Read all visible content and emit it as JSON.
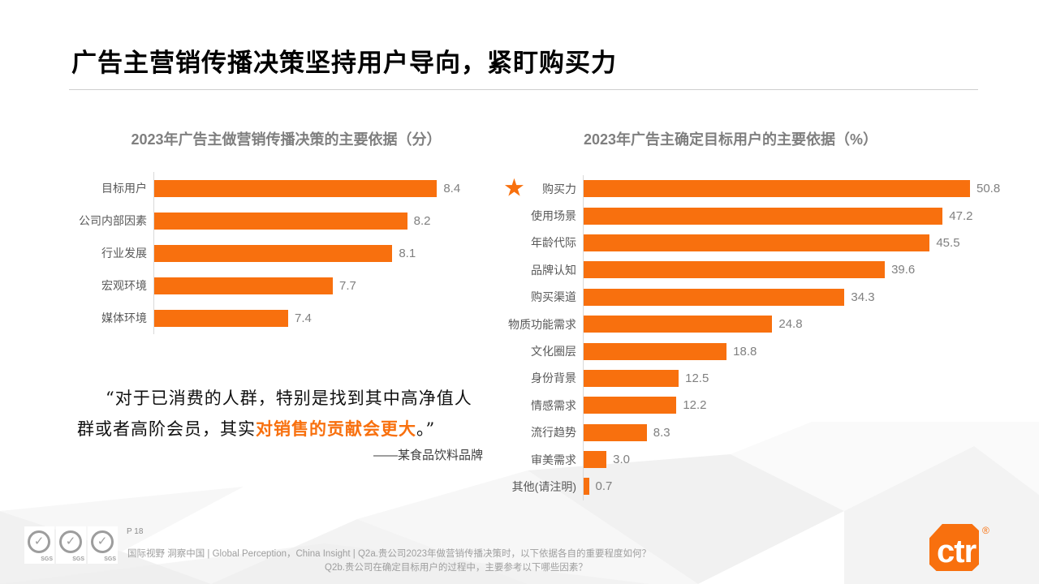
{
  "slide": {
    "title": "广告主营销传播决策坚持用户导向，紧盯购买力",
    "page_label": "P 18",
    "footer_line1": "国际视野 洞察中国 |  Global Perception，China Insight | Q2a.贵公司2023年做营销传播决策时，以下依据各自的重要程度如何？",
    "footer_line2": "Q2b.贵公司在确定目标用户的过程中，主要参考以下哪些因素？",
    "sgs_label": "SGS",
    "logo_text": "ctr",
    "logo_reg": "®"
  },
  "quote": {
    "line1": "“对于已消费的人群，特别是找到其中高净值人",
    "line2_pre": "群或者高阶会员，其实",
    "line2_highlight": "对销售的贡献会更大",
    "line2_post": "。”",
    "attribution": "——某食品饮料品牌"
  },
  "colors": {
    "accent_orange": "#F8700E",
    "title_black": "#000000",
    "chart_title_gray": "#7F7F7F",
    "label_gray": "#595959",
    "value_gray": "#808080",
    "axis_gray": "#D9D9D9",
    "footer_gray": "#9E9E9E"
  },
  "chart_data": [
    {
      "type": "bar",
      "orientation": "horizontal",
      "title": "2023年广告主做营销传播决策的主要依据（分）",
      "categories": [
        "目标用户",
        "公司内部因素",
        "行业发展",
        "宏观环境",
        "媒体环境"
      ],
      "values": [
        8.4,
        8.2,
        8.1,
        7.7,
        7.4
      ],
      "xlim": [
        6.5,
        8.6
      ],
      "value_decimals": 1,
      "bar_color": "#F8700E",
      "grid": false,
      "legend": false
    },
    {
      "type": "bar",
      "orientation": "horizontal",
      "title": "2023年广告主确定目标用户的主要依据（%）",
      "categories": [
        "购买力",
        "使用场景",
        "年龄代际",
        "品牌认知",
        "购买渠道",
        "物质功能需求",
        "文化圈层",
        "身份背景",
        "情感需求",
        "流行趋势",
        "审美需求",
        "其他(请注明)"
      ],
      "values": [
        50.8,
        47.2,
        45.5,
        39.6,
        34.3,
        24.8,
        18.8,
        12.5,
        12.2,
        8.3,
        3.0,
        0.7
      ],
      "xlim": [
        0,
        54
      ],
      "value_decimals": 1,
      "bar_color": "#F8700E",
      "starred_category": "购买力",
      "star_icon": "★",
      "grid": false,
      "legend": false
    }
  ]
}
